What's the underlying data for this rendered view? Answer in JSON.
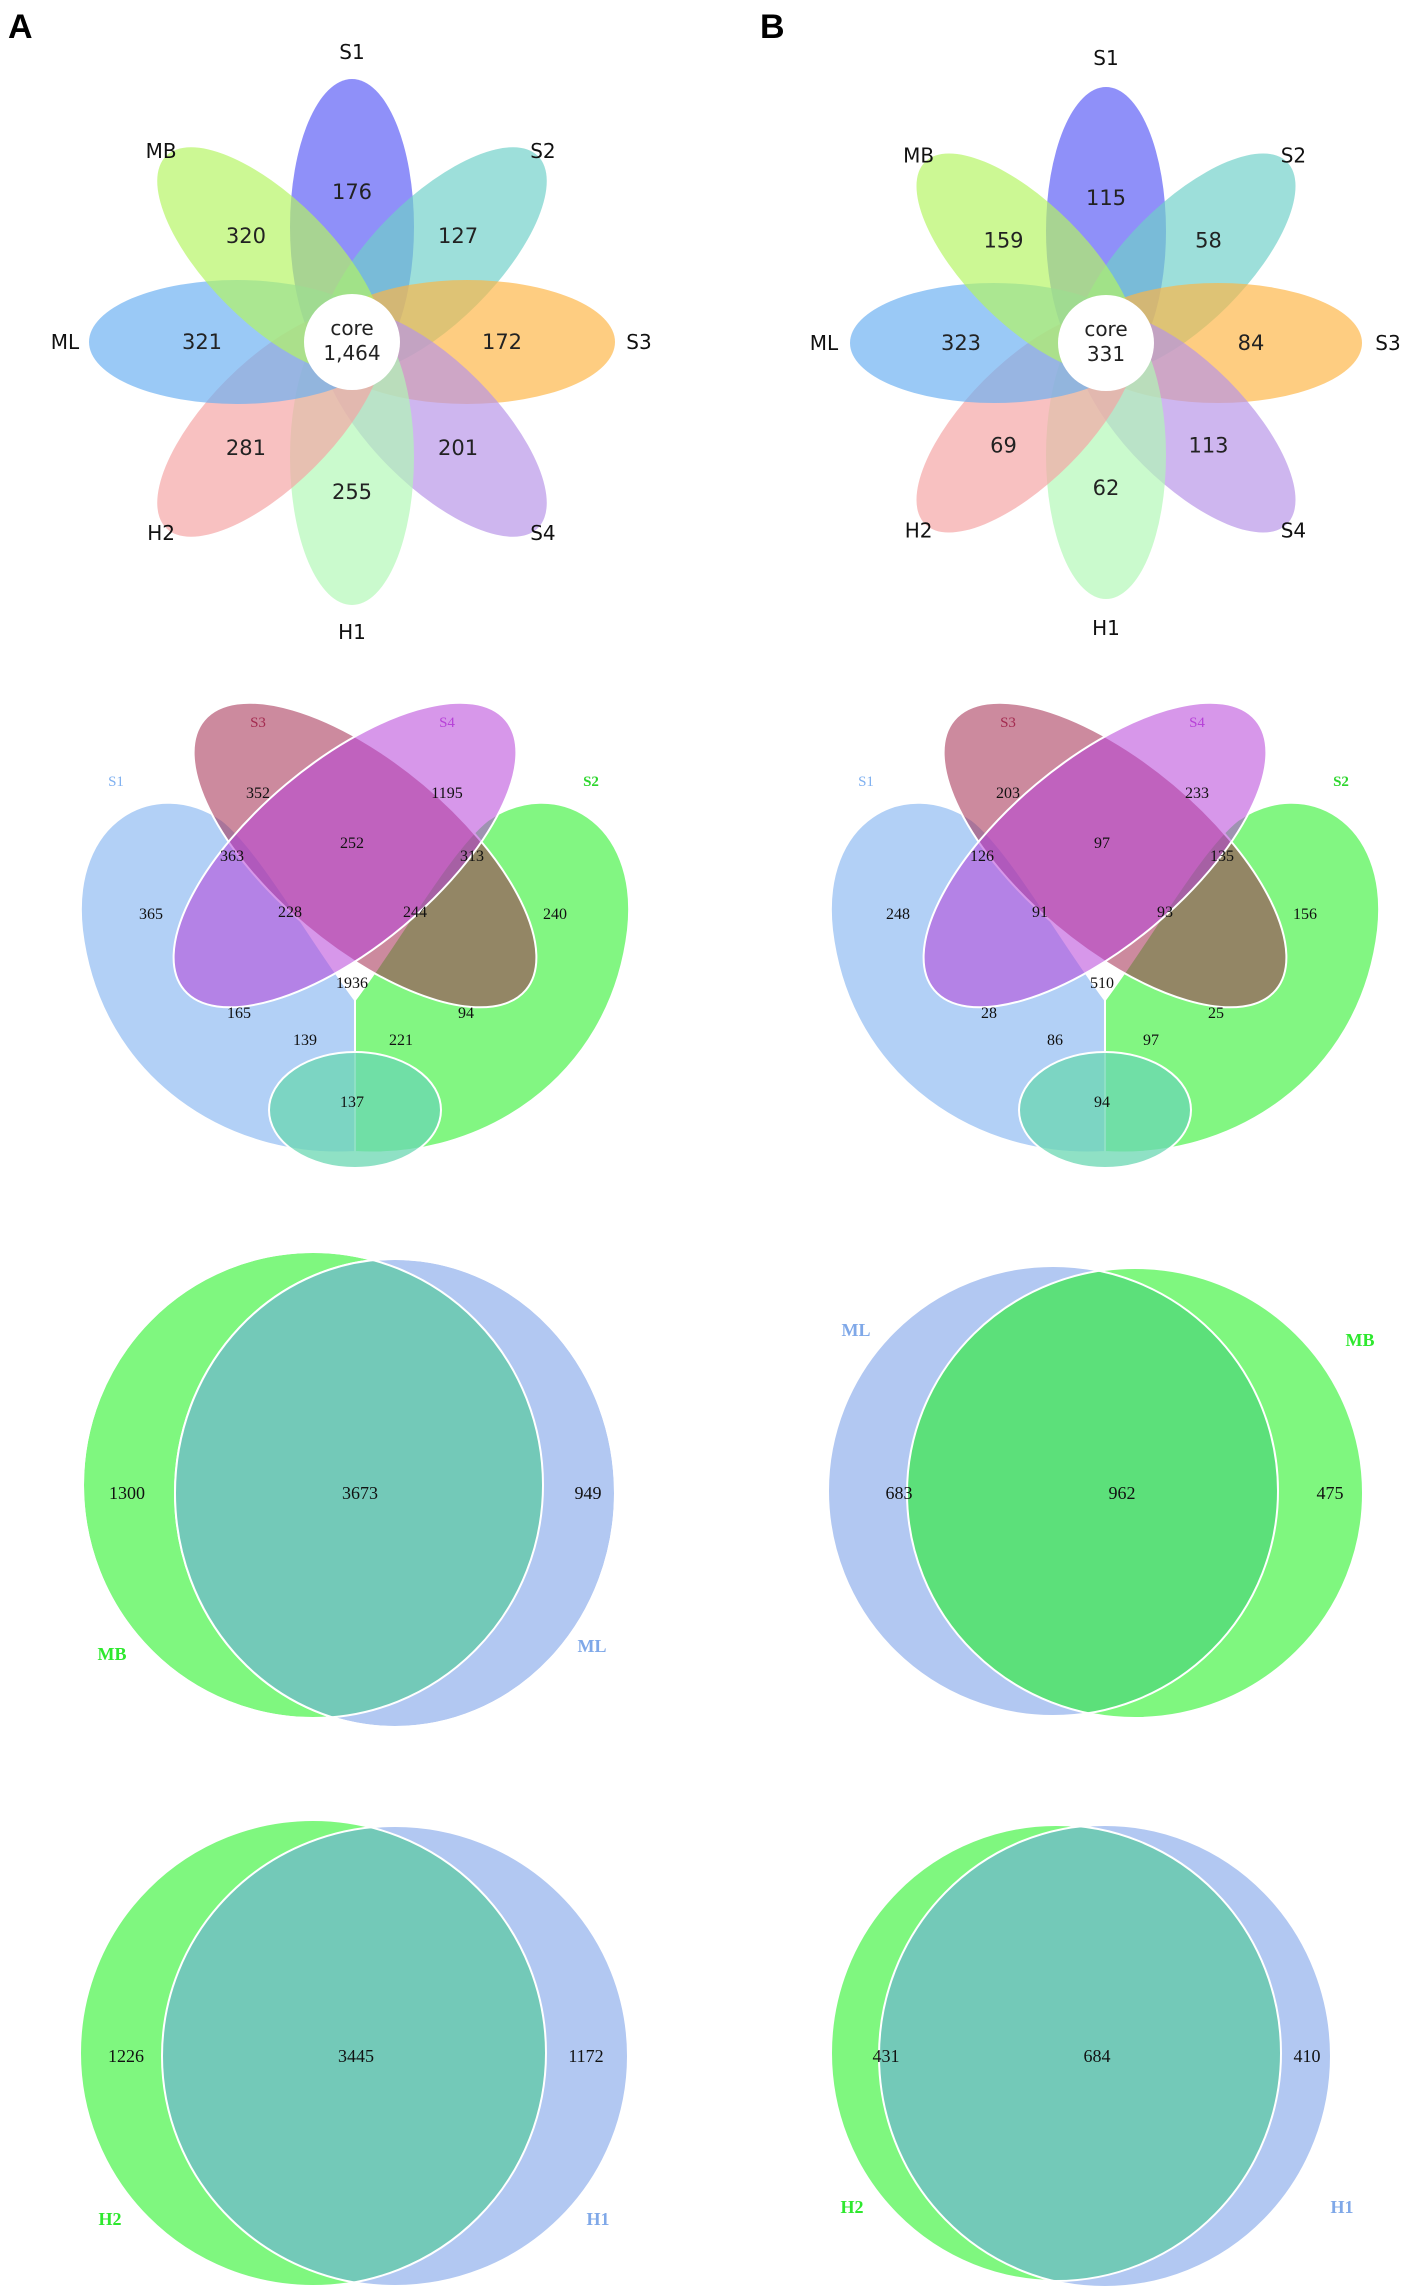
{
  "panels": [
    {
      "label": "A",
      "flower": {
        "core_label": "core",
        "core_value": "1,464",
        "petals": [
          {
            "name": "S1",
            "value": "176",
            "color": "#5a5cf6"
          },
          {
            "name": "S2",
            "value": "127",
            "color": "#6fd0c8"
          },
          {
            "name": "S3",
            "value": "172",
            "color": "#fdb545"
          },
          {
            "name": "S4",
            "value": "201",
            "color": "#b794e8"
          },
          {
            "name": "H1",
            "value": "255",
            "color": "#b1f7b5"
          },
          {
            "name": "H2",
            "value": "281",
            "color": "#f4a3a3"
          },
          {
            "name": "ML",
            "value": "321",
            "color": "#6aaff2"
          },
          {
            "name": "MB",
            "value": "320",
            "color": "#b4f562"
          }
        ]
      },
      "venn4": {
        "sets": [
          {
            "name": "S1",
            "color": "#7fb0f0"
          },
          {
            "name": "S3",
            "color": "#a32a4f"
          },
          {
            "name": "S4",
            "color": "#b742d8"
          },
          {
            "name": "S2",
            "color": "#2ed62e"
          }
        ],
        "regions": {
          "S1_only": "365",
          "S3_only": "352",
          "S4_only": "1195",
          "S2_only": "240",
          "S1_S3": "363",
          "S3_S4": "252",
          "S4_S2": "313",
          "S1_S3_S4": "228",
          "S3_S4_S2": "244",
          "all": "1936",
          "S1_S4": "165",
          "S3_S2": "94",
          "S1_S4_S2": "139",
          "S1_S3_S2": "221",
          "S1_S2": "137"
        }
      },
      "venn2_top": {
        "left_name": "MB",
        "right_name": "ML",
        "left_color": "#2ee82e",
        "right_color": "#7fa8e8",
        "left_only": "1300",
        "both": "3673",
        "right_only": "949"
      },
      "venn2_bottom": {
        "left_name": "H2",
        "right_name": "H1",
        "left_color": "#2ee82e",
        "right_color": "#7fa8e8",
        "left_only": "1226",
        "both": "3445",
        "right_only": "1172"
      }
    },
    {
      "label": "B",
      "flower": {
        "core_label": "core",
        "core_value": "331",
        "petals": [
          {
            "name": "S1",
            "value": "115",
            "color": "#5a5cf6"
          },
          {
            "name": "S2",
            "value": "58",
            "color": "#6fd0c8"
          },
          {
            "name": "S3",
            "value": "84",
            "color": "#fdb545"
          },
          {
            "name": "S4",
            "value": "113",
            "color": "#b794e8"
          },
          {
            "name": "H1",
            "value": "62",
            "color": "#b1f7b5"
          },
          {
            "name": "H2",
            "value": "69",
            "color": "#f4a3a3"
          },
          {
            "name": "ML",
            "value": "323",
            "color": "#6aaff2"
          },
          {
            "name": "MB",
            "value": "159",
            "color": "#b4f562"
          }
        ]
      },
      "venn4": {
        "sets": [
          {
            "name": "S1",
            "color": "#7fb0f0"
          },
          {
            "name": "S3",
            "color": "#a32a4f"
          },
          {
            "name": "S4",
            "color": "#b742d8"
          },
          {
            "name": "S2",
            "color": "#2ed62e"
          }
        ],
        "regions": {
          "S1_only": "248",
          "S3_only": "203",
          "S4_only": "233",
          "S2_only": "156",
          "S1_S3": "126",
          "S3_S4": "97",
          "S4_S2": "135",
          "S1_S3_S4": "91",
          "S3_S4_S2": "93",
          "all": "510",
          "S1_S4": "28",
          "S3_S2": "25",
          "S1_S4_S2": "86",
          "S1_S3_S2": "97",
          "S1_S2": "94"
        }
      },
      "venn2_top": {
        "left_name": "ML",
        "right_name": "MB",
        "left_color": "#7fa8e8",
        "right_color": "#2ee82e",
        "left_only": "683",
        "both": "962",
        "right_only": "475",
        "overlap_color": "#5ce07a"
      },
      "venn2_bottom": {
        "left_name": "H2",
        "right_name": "H1",
        "left_color": "#2ee82e",
        "right_color": "#7fa8e8",
        "left_only": "431",
        "both": "684",
        "right_only": "410"
      }
    }
  ]
}
